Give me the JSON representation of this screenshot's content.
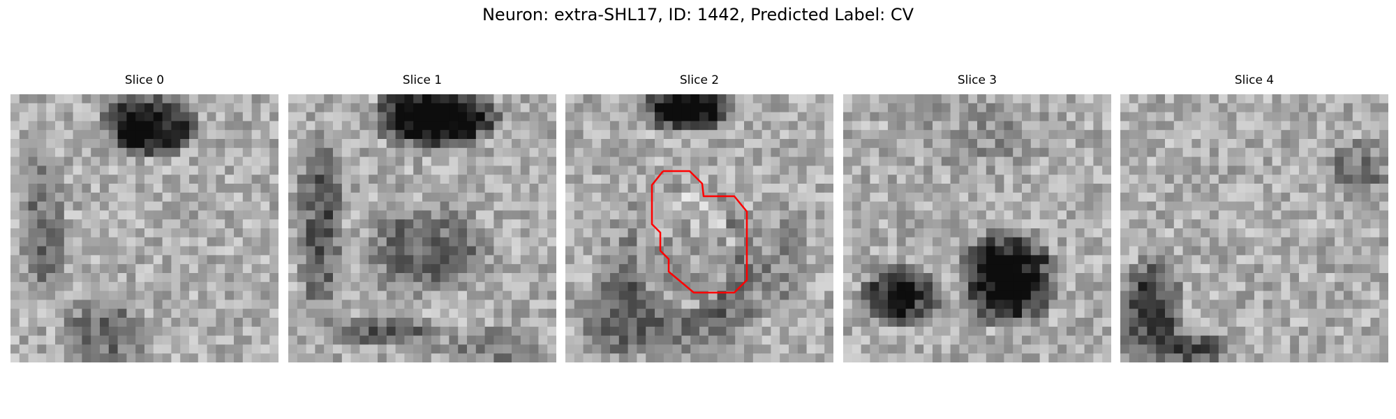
{
  "figure": {
    "title": "Neuron: extra-SHL17, ID: 1442, Predicted Label: CV"
  },
  "panels": [
    {
      "label": "Slice 0"
    },
    {
      "label": "Slice 1"
    },
    {
      "label": "Slice 2",
      "has_contour": true
    },
    {
      "label": "Slice 3"
    },
    {
      "label": "Slice 4"
    }
  ],
  "colors": {
    "contour": "#ff0000",
    "background": "#ffffff"
  },
  "image_content": {
    "type": "grayscale EM micrograph crops",
    "grid": "pixelated patches",
    "contour_slice_index": 2
  }
}
